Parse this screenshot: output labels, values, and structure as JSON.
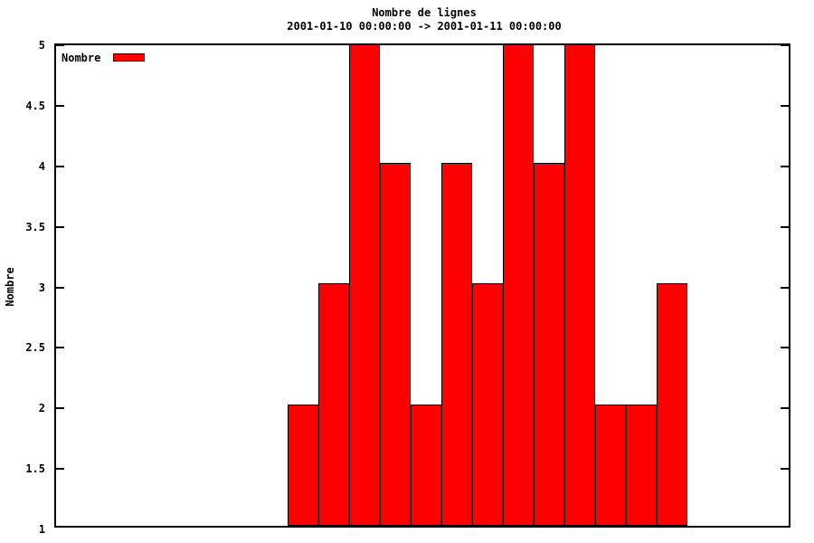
{
  "title": "Nombre de lignes",
  "subtitle": "2001-01-10 00:00:00 -> 2001-01-11 00:00:00",
  "legend": {
    "label": "Nombre",
    "swatch_color": "#ff0000",
    "position": "top-left"
  },
  "y_axis": {
    "label": "Nombre",
    "tick_labels": [
      "1",
      "1.5",
      "2",
      "2.5",
      "3",
      "3.5",
      "4",
      "4.5",
      "5"
    ]
  },
  "x_axis": {
    "tick_labels": []
  },
  "chart_data": {
    "type": "bar",
    "title": "Nombre de lignes",
    "subtitle": "2001-01-10 00:00:00 -> 2001-01-11 00:00:00",
    "xlabel": "",
    "ylabel": "Nombre",
    "ylim": [
      1,
      5
    ],
    "ytick_step": 0.5,
    "ytick_labels": [
      "1",
      "1.5",
      "2",
      "2.5",
      "3",
      "3.5",
      "4",
      "4.5",
      "5"
    ],
    "xtick_labels": [],
    "grid": false,
    "legend_position": "top-left",
    "series": [
      {
        "name": "Nombre",
        "values": [
          2,
          3,
          5,
          4,
          2,
          4,
          3,
          5,
          4,
          5,
          2,
          2,
          3
        ]
      }
    ],
    "bar_baseline": 1,
    "bar_color": "#ff0000",
    "bar_border_color": "#000000",
    "axis_color": "#000000",
    "background_color": "#ffffff"
  }
}
